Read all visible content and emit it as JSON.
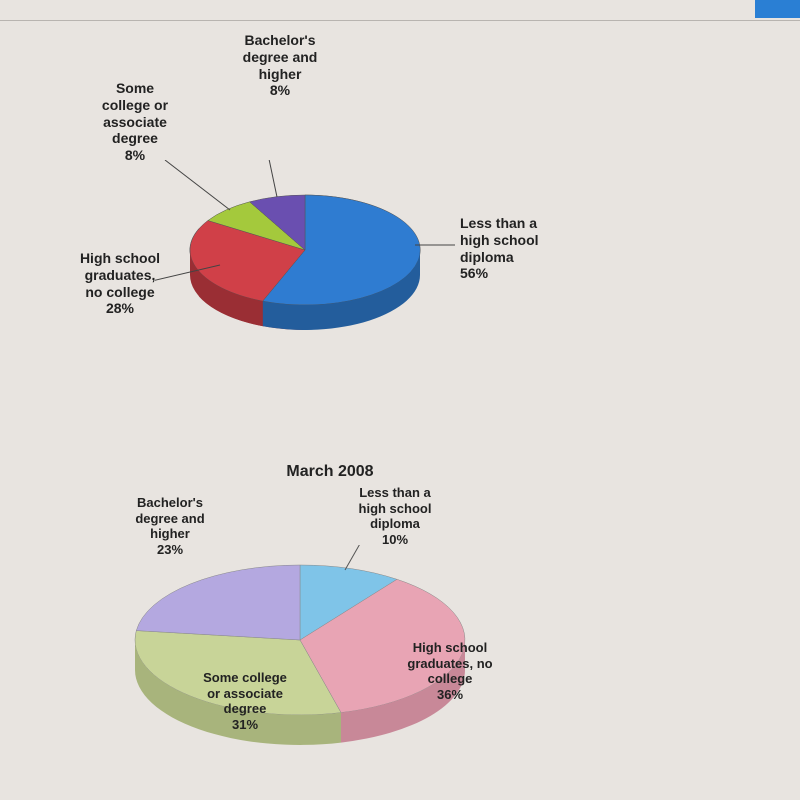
{
  "background_color": "#e8e4e0",
  "font_family": "Arial",
  "label_fontsize": 14,
  "label_color": "#222222",
  "label_weight": "bold",
  "chart1": {
    "type": "pie",
    "labels": {
      "bachelors": "Bachelor's\ndegree and\nhigher\n8%",
      "some_college": "Some\ncollege or\nassociate\ndegree\n8%",
      "high_school": "High school\ngraduates,\nno college\n28%",
      "less_than": "Less than a\nhigh school\ndiploma\n56%"
    },
    "slices": [
      {
        "name": "less_than",
        "value": 56,
        "color": "#2f7cd1"
      },
      {
        "name": "high_school",
        "value": 28,
        "color": "#d04048"
      },
      {
        "name": "some_college",
        "value": 8,
        "color": "#a4c93c"
      },
      {
        "name": "bachelors",
        "value": 8,
        "color": "#6a4fb0"
      }
    ],
    "side_color": "#5a5a88",
    "outline": "#555555"
  },
  "chart2": {
    "type": "pie",
    "title": "March 2008",
    "labels": {
      "less_than": "Less than a\nhigh school\ndiploma\n10%",
      "high_school": "High school\ngraduates, no\ncollege\n36%",
      "some_college": "Some college\nor associate\ndegree\n31%",
      "bachelors": "Bachelor's\ndegree and\nhigher\n23%"
    },
    "slices": [
      {
        "name": "less_than",
        "value": 10,
        "color": "#7fc4e8"
      },
      {
        "name": "high_school",
        "value": 36,
        "color": "#e8a4b4"
      },
      {
        "name": "some_college",
        "value": 31,
        "color": "#c8d498"
      },
      {
        "name": "bachelors",
        "value": 23,
        "color": "#b4a8e0"
      }
    ],
    "side_color": "#9aa8a0",
    "outline": "#888888"
  }
}
